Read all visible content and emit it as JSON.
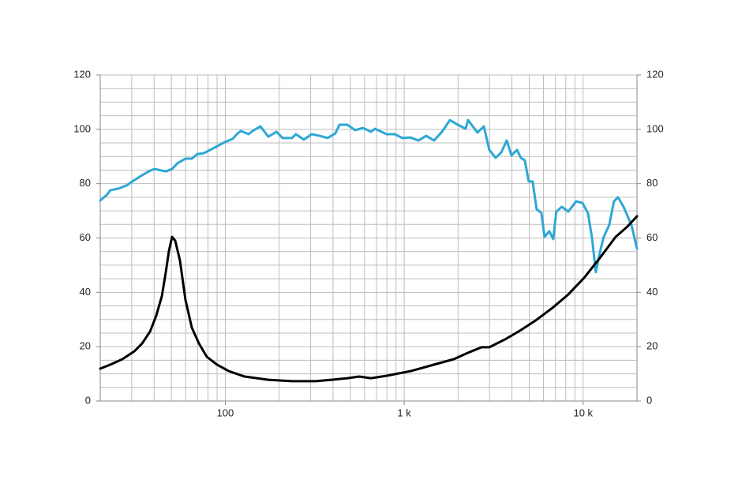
{
  "chart_data": {
    "type": "line",
    "xscale": "log",
    "xlim": [
      20,
      20000
    ],
    "xticks": [
      100,
      {
        "value": 1000,
        "label": "1 k"
      },
      {
        "value": 10000,
        "label": "10 k"
      }
    ],
    "ylim": [
      0,
      120
    ],
    "yticks": [
      0,
      20,
      40,
      60,
      80,
      100,
      120
    ],
    "y2lim": [
      0,
      120
    ],
    "y2ticks": [
      0,
      20,
      40,
      60,
      80,
      100,
      120
    ],
    "grid": true,
    "xgrid": [
      20,
      30,
      40,
      50,
      60,
      70,
      80,
      90,
      100,
      200,
      300,
      400,
      500,
      600,
      700,
      800,
      900,
      1000,
      2000,
      3000,
      4000,
      5000,
      6000,
      7000,
      8000,
      9000,
      10000,
      20000
    ],
    "ygrid": [
      0,
      5,
      10,
      15,
      20,
      25,
      30,
      35,
      40,
      45,
      50,
      55,
      60,
      65,
      70,
      75,
      80,
      85,
      90,
      95,
      100,
      105,
      110,
      115,
      120
    ],
    "series": [
      {
        "color": "#2ea7d5",
        "x": [
          20,
          21.7,
          22.8,
          25.3,
          28,
          31,
          34.3,
          38,
          40.3,
          46.5,
          50.4,
          54,
          59.9,
          65,
          69.8,
          75.7,
          85.5,
          99.5,
          110,
          116,
          122,
          135,
          142,
          157,
          174,
          193,
          209,
          236,
          248,
          275,
          304,
          337,
          373,
          412,
          435,
          481,
          532,
          589,
          652,
          686,
          798,
          883,
          979,
          1084,
          1200,
          1328,
          1469,
          1626,
          1800,
          1992,
          2205,
          2275,
          2567,
          2787,
          2992,
          3245,
          3486,
          3743,
          3976,
          4270,
          4490,
          4720,
          4966,
          5224,
          5496,
          5846,
          6086,
          6471,
          6808,
          7081,
          7608,
          8255,
          9141,
          9910,
          10641,
          11196,
          11780,
          12393,
          13039,
          13998,
          14866,
          15661,
          16826,
          18622,
          20000
        ],
        "values": [
          73.8,
          75.8,
          77.6,
          78.2,
          79.3,
          81.3,
          83.1,
          84.8,
          85.4,
          84.5,
          85.4,
          87.5,
          89.2,
          89.2,
          90.9,
          91.2,
          93,
          95.3,
          96.5,
          98.2,
          99.4,
          98.2,
          99.4,
          101.1,
          97.3,
          99.1,
          96.8,
          96.8,
          98.2,
          96.2,
          98.2,
          97.6,
          96.8,
          98.5,
          101.7,
          101.7,
          99.7,
          100.5,
          99.1,
          100.2,
          98.2,
          98.2,
          96.8,
          97,
          95.9,
          97.6,
          95.9,
          99.1,
          103.4,
          101.7,
          100.2,
          103.4,
          98.8,
          101.1,
          92.4,
          89.5,
          91.5,
          95.9,
          90.4,
          92.4,
          89.5,
          88.6,
          80.8,
          80.8,
          70.6,
          69.2,
          60.4,
          62.5,
          59.6,
          69.7,
          71.5,
          69.7,
          73.5,
          72.9,
          69.2,
          60.4,
          47.4,
          54.6,
          60.4,
          64.8,
          73.5,
          75,
          71.5,
          64.8,
          56.1
        ]
      },
      {
        "color": "#000000",
        "axis": "y2",
        "x": [
          20,
          22.8,
          26.6,
          31,
          34.3,
          38,
          41.1,
          44.2,
          46.5,
          48.4,
          50.4,
          52.5,
          55.8,
          59.9,
          65,
          71.2,
          78.8,
          89.9,
          104.7,
          128.3,
          174,
          236,
          320,
          392,
          481,
          560,
          652,
          798,
          1084,
          1469,
          1894,
          2319,
          2705,
          2992,
          3665,
          4490,
          5496,
          6746,
          8255,
          10120,
          12393,
          15190,
          17690,
          20000
        ],
        "values": [
          11.9,
          13.4,
          15.4,
          18.3,
          21.2,
          25.6,
          31.4,
          38.6,
          47.4,
          55.2,
          60.4,
          59,
          51.7,
          37.2,
          27,
          21.2,
          16.3,
          13.4,
          11,
          9,
          7.8,
          7.3,
          7.3,
          7.8,
          8.4,
          9,
          8.4,
          9.3,
          11,
          13.4,
          15.4,
          18,
          19.8,
          19.8,
          22.7,
          26.1,
          29.9,
          34.3,
          39.2,
          45.3,
          52.6,
          60.4,
          64.2,
          68
        ]
      }
    ]
  }
}
